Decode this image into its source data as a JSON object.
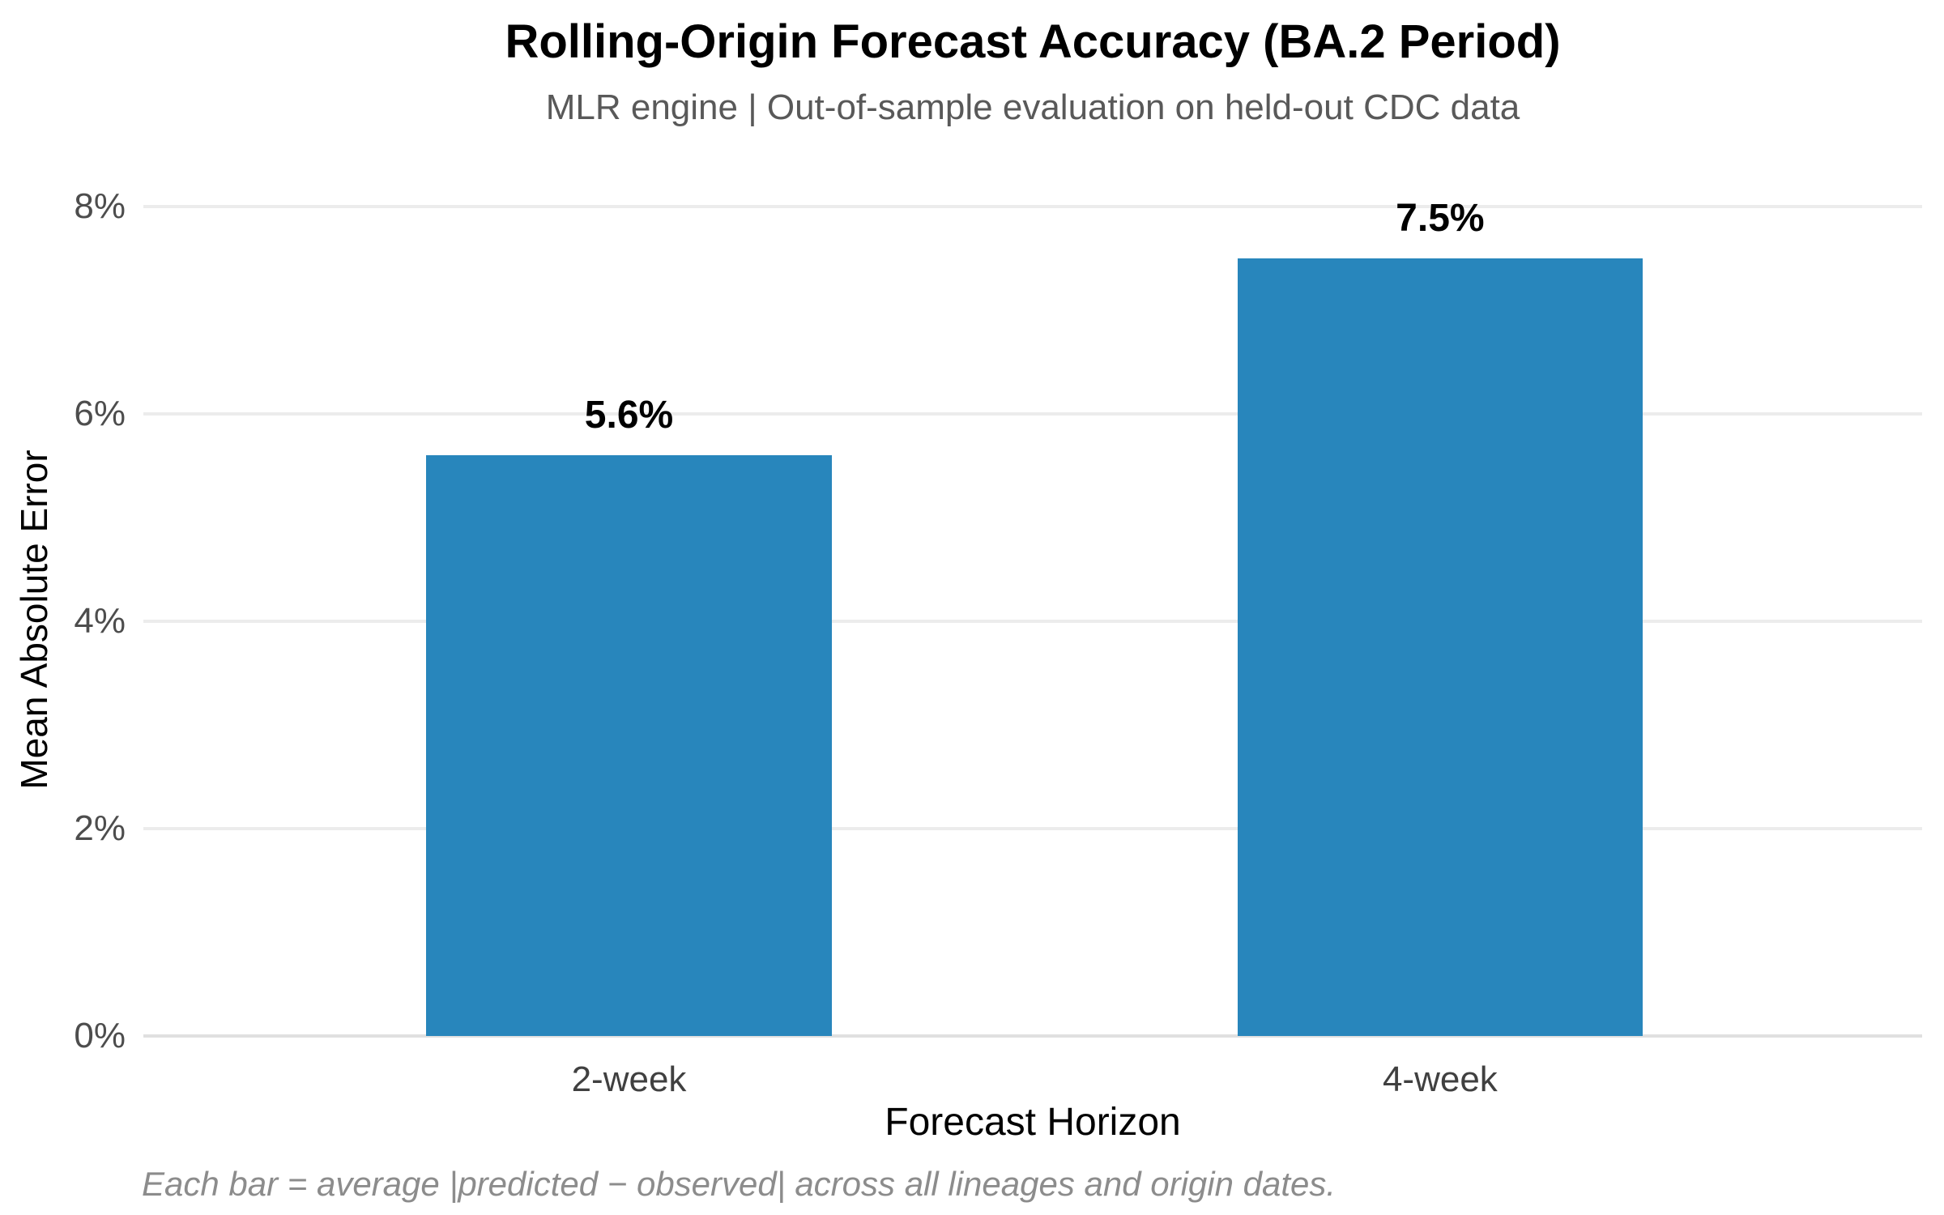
{
  "chart_data": {
    "type": "bar",
    "title": "Rolling-Origin Forecast Accuracy (BA.2 Period)",
    "subtitle": "MLR engine | Out-of-sample evaluation on held-out CDC data",
    "xlabel": "Forecast Horizon",
    "ylabel": "Mean Absolute Error",
    "categories": [
      "2-week",
      "4-week"
    ],
    "values": [
      5.6,
      7.5
    ],
    "bar_labels": [
      "5.6%",
      "7.5%"
    ],
    "yticks": [
      {
        "value": 0,
        "label": "0%"
      },
      {
        "value": 2,
        "label": "2%"
      },
      {
        "value": 4,
        "label": "4%"
      },
      {
        "value": 6,
        "label": "6%"
      },
      {
        "value": 8,
        "label": "8%"
      }
    ],
    "ylim": [
      0,
      8
    ],
    "grid": "horizontal-only",
    "legend": "none",
    "bar_color": "#2886bc",
    "footnote": "Each bar = average |predicted − observed| across all lineages and origin dates."
  }
}
